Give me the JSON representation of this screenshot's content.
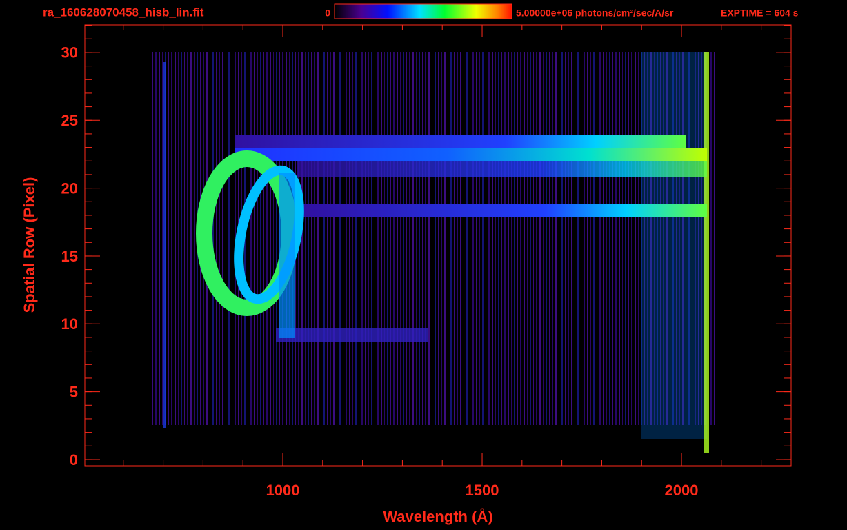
{
  "chart_data": {
    "type": "image",
    "title": "ra_160628070458_hisb_lin.fit",
    "exposure": "EXPTIME = 604 s",
    "colorbar_ticks": [
      0,
      {
        "value": 5000000,
        "label": "5.00000e+06 photons/cm²/sec/A/sr"
      }
    ],
    "colorbar_lim": [
      0,
      5000000
    ],
    "x_label": "Wavelength (Å)",
    "y_label": "Spatial Row (Pixel)",
    "xlim": [
      503.5,
      2275
    ],
    "ylim": [
      -0.46,
      32.03
    ],
    "xticks": [
      1000,
      1500,
      2000
    ],
    "yticks": [
      0,
      5,
      10,
      15,
      20,
      25,
      30
    ],
    "color": "#ff2a1a"
  }
}
